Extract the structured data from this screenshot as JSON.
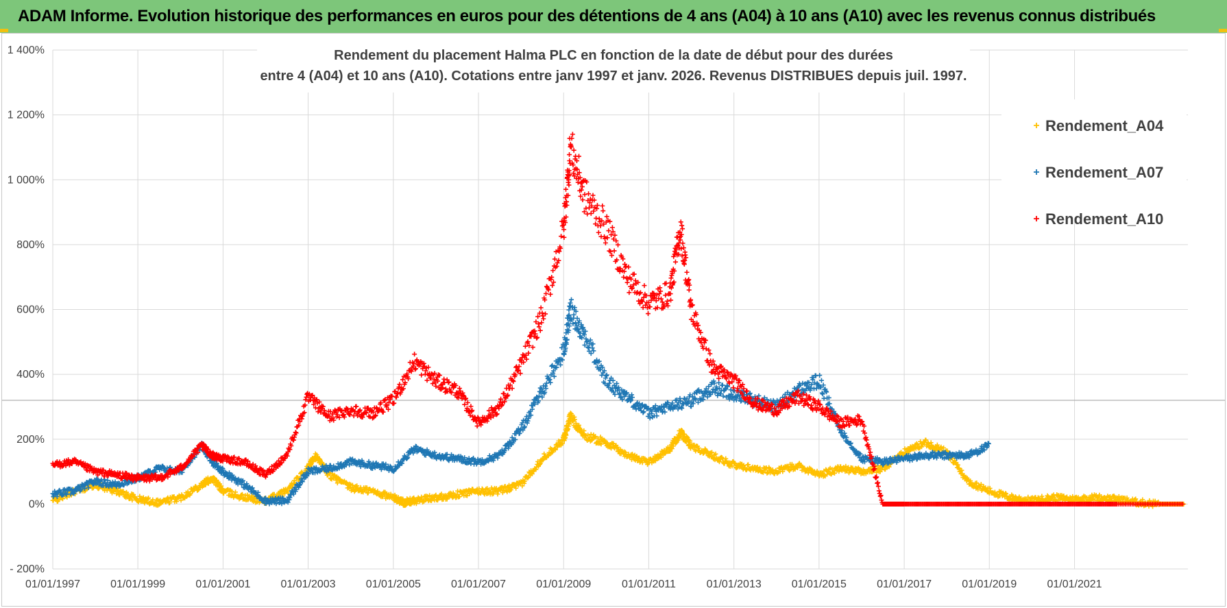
{
  "header": {
    "title": "ADAM Informe. Evolution historique des performances en euros pour des détentions de 4 ans (A04) à 10 ans (A10) avec les revenus connus distribués"
  },
  "chart_data": {
    "type": "scatter",
    "title_lines": [
      "Rendement du placement Halma PLC en fonction de la date de début pour des durées",
      "entre 4 (A04) et 10 ans (A10).  Cotations entre janv 1997 et janv. 2026. Revenus DISTRIBUES depuis juil. 1997."
    ],
    "x_range": [
      "1997-01-01",
      "2023-09-01"
    ],
    "x_ticks": [
      "01/01/1997",
      "01/01/1999",
      "01/01/2001",
      "01/01/2003",
      "01/01/2005",
      "01/01/2007",
      "01/01/2009",
      "01/01/2011",
      "01/01/2013",
      "01/01/2015",
      "01/01/2017",
      "01/01/2019",
      "01/01/2021"
    ],
    "ylim": [
      -200,
      1400
    ],
    "y_ticks": [
      -200,
      0,
      200,
      400,
      600,
      800,
      1000,
      1200,
      1400
    ],
    "y_tick_labels": [
      "- 200%",
      "0%",
      "200%",
      "400%",
      "600%",
      "800%",
      "1 000%",
      "1 200%",
      "1 400%"
    ],
    "grid": true,
    "legend_position": "top-right",
    "marker": "+",
    "series": [
      {
        "name": "Rendement_A04",
        "color": "#ffc000",
        "points": [
          [
            "1997-01-01",
            10
          ],
          [
            "1997-07-01",
            40
          ],
          [
            "1998-01-01",
            60
          ],
          [
            "1998-07-01",
            40
          ],
          [
            "1999-01-01",
            15
          ],
          [
            "1999-07-01",
            5
          ],
          [
            "2000-01-01",
            20
          ],
          [
            "2000-07-01",
            60
          ],
          [
            "2000-10-01",
            80
          ],
          [
            "2001-01-01",
            40
          ],
          [
            "2001-07-01",
            20
          ],
          [
            "2002-01-01",
            10
          ],
          [
            "2002-07-01",
            40
          ],
          [
            "2003-01-01",
            110
          ],
          [
            "2003-03-01",
            150
          ],
          [
            "2003-07-01",
            90
          ],
          [
            "2004-01-01",
            50
          ],
          [
            "2004-07-01",
            40
          ],
          [
            "2005-01-01",
            20
          ],
          [
            "2005-04-01",
            5
          ],
          [
            "2005-07-01",
            10
          ],
          [
            "2006-01-01",
            20
          ],
          [
            "2006-07-01",
            30
          ],
          [
            "2007-01-01",
            40
          ],
          [
            "2007-07-01",
            40
          ],
          [
            "2008-01-01",
            60
          ],
          [
            "2008-07-01",
            140
          ],
          [
            "2009-01-01",
            200
          ],
          [
            "2009-03-01",
            270
          ],
          [
            "2009-07-01",
            210
          ],
          [
            "2010-01-01",
            190
          ],
          [
            "2010-07-01",
            150
          ],
          [
            "2011-01-01",
            130
          ],
          [
            "2011-07-01",
            170
          ],
          [
            "2011-10-01",
            220
          ],
          [
            "2012-01-01",
            180
          ],
          [
            "2012-07-01",
            150
          ],
          [
            "2013-01-01",
            120
          ],
          [
            "2013-07-01",
            110
          ],
          [
            "2014-01-01",
            100
          ],
          [
            "2014-07-01",
            120
          ],
          [
            "2015-01-01",
            90
          ],
          [
            "2015-07-01",
            110
          ],
          [
            "2016-01-01",
            100
          ],
          [
            "2016-07-01",
            110
          ],
          [
            "2017-01-01",
            160
          ],
          [
            "2017-07-01",
            190
          ],
          [
            "2018-01-01",
            160
          ],
          [
            "2018-07-01",
            70
          ],
          [
            "2019-01-01",
            40
          ],
          [
            "2019-07-01",
            20
          ],
          [
            "2020-01-01",
            10
          ],
          [
            "2020-07-01",
            20
          ],
          [
            "2021-01-01",
            15
          ],
          [
            "2021-07-01",
            20
          ],
          [
            "2022-01-01",
            15
          ],
          [
            "2022-07-01",
            5
          ],
          [
            "2023-01-01",
            0
          ],
          [
            "2023-08-01",
            0
          ]
        ]
      },
      {
        "name": "Rendement_A07",
        "color": "#1f77b4",
        "points": [
          [
            "1997-01-01",
            30
          ],
          [
            "1997-07-01",
            40
          ],
          [
            "1998-01-01",
            70
          ],
          [
            "1998-07-01",
            60
          ],
          [
            "1999-01-01",
            80
          ],
          [
            "1999-07-01",
            110
          ],
          [
            "2000-01-01",
            100
          ],
          [
            "2000-07-01",
            180
          ],
          [
            "2000-10-01",
            130
          ],
          [
            "2001-01-01",
            100
          ],
          [
            "2001-07-01",
            60
          ],
          [
            "2002-01-01",
            10
          ],
          [
            "2002-07-01",
            10
          ],
          [
            "2003-01-01",
            100
          ],
          [
            "2003-07-01",
            110
          ],
          [
            "2004-01-01",
            130
          ],
          [
            "2004-07-01",
            120
          ],
          [
            "2005-01-01",
            110
          ],
          [
            "2005-07-01",
            170
          ],
          [
            "2006-01-01",
            150
          ],
          [
            "2006-07-01",
            140
          ],
          [
            "2007-01-01",
            130
          ],
          [
            "2007-07-01",
            150
          ],
          [
            "2008-01-01",
            230
          ],
          [
            "2008-07-01",
            350
          ],
          [
            "2009-01-01",
            470
          ],
          [
            "2009-03-01",
            600
          ],
          [
            "2009-07-01",
            520
          ],
          [
            "2010-01-01",
            380
          ],
          [
            "2010-07-01",
            330
          ],
          [
            "2011-01-01",
            280
          ],
          [
            "2011-07-01",
            300
          ],
          [
            "2012-01-01",
            320
          ],
          [
            "2012-07-01",
            360
          ],
          [
            "2013-01-01",
            340
          ],
          [
            "2013-07-01",
            320
          ],
          [
            "2014-01-01",
            300
          ],
          [
            "2014-07-01",
            350
          ],
          [
            "2015-01-01",
            380
          ],
          [
            "2015-07-01",
            230
          ],
          [
            "2016-01-01",
            140
          ],
          [
            "2016-07-01",
            130
          ],
          [
            "2017-01-01",
            140
          ],
          [
            "2017-07-01",
            150
          ],
          [
            "2018-01-01",
            150
          ],
          [
            "2018-07-01",
            150
          ],
          [
            "2019-01-01",
            180
          ]
        ]
      },
      {
        "name": "Rendement_A10",
        "color": "#ff0000",
        "points": [
          [
            "1997-01-01",
            120
          ],
          [
            "1997-07-01",
            130
          ],
          [
            "1998-01-01",
            100
          ],
          [
            "1998-07-01",
            90
          ],
          [
            "1999-01-01",
            80
          ],
          [
            "1999-07-01",
            80
          ],
          [
            "2000-01-01",
            110
          ],
          [
            "2000-07-01",
            180
          ],
          [
            "2000-10-01",
            150
          ],
          [
            "2001-01-01",
            140
          ],
          [
            "2001-07-01",
            130
          ],
          [
            "2002-01-01",
            90
          ],
          [
            "2002-07-01",
            150
          ],
          [
            "2003-01-01",
            330
          ],
          [
            "2003-07-01",
            270
          ],
          [
            "2004-01-01",
            290
          ],
          [
            "2004-07-01",
            280
          ],
          [
            "2005-01-01",
            320
          ],
          [
            "2005-07-01",
            440
          ],
          [
            "2006-01-01",
            380
          ],
          [
            "2006-07-01",
            350
          ],
          [
            "2007-01-01",
            250
          ],
          [
            "2007-07-01",
            300
          ],
          [
            "2008-01-01",
            430
          ],
          [
            "2008-07-01",
            580
          ],
          [
            "2009-01-01",
            850
          ],
          [
            "2009-03-01",
            1100
          ],
          [
            "2009-07-01",
            950
          ],
          [
            "2010-01-01",
            850
          ],
          [
            "2010-07-01",
            700
          ],
          [
            "2011-01-01",
            620
          ],
          [
            "2011-07-01",
            650
          ],
          [
            "2011-10-01",
            850
          ],
          [
            "2012-01-01",
            600
          ],
          [
            "2012-07-01",
            420
          ],
          [
            "2013-01-01",
            380
          ],
          [
            "2013-07-01",
            310
          ],
          [
            "2014-01-01",
            290
          ],
          [
            "2014-07-01",
            330
          ],
          [
            "2015-01-01",
            300
          ],
          [
            "2015-07-01",
            250
          ],
          [
            "2016-01-01",
            260
          ],
          [
            "2016-07-01",
            0
          ],
          [
            "2017-01-01",
            0
          ],
          [
            "2018-01-01",
            0
          ],
          [
            "2019-01-01",
            0
          ],
          [
            "2020-01-01",
            0
          ],
          [
            "2021-01-01",
            0
          ],
          [
            "2022-01-01",
            0
          ],
          [
            "2023-08-01",
            0
          ]
        ]
      }
    ]
  }
}
